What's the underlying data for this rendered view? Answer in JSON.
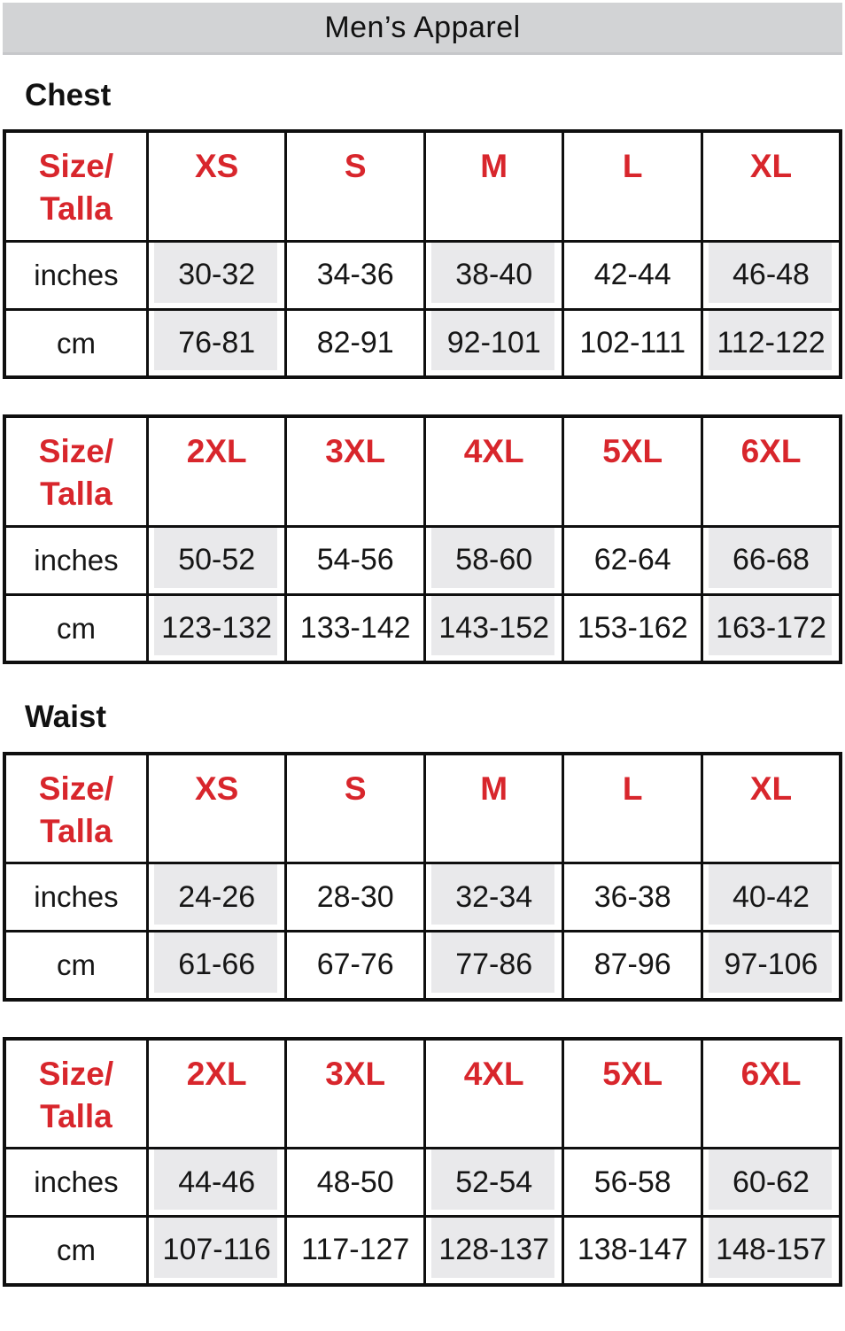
{
  "title": "Men’s Apparel",
  "corner": {
    "line1": "Size/",
    "line2": "Talla"
  },
  "sections": [
    {
      "heading": "Chest"
    },
    {
      "heading": "Waist"
    }
  ],
  "colors": {
    "accent_red": "#d8262c",
    "title_bar_bg": "#d2d3d5",
    "shaded_cell_bg": "#e9e9eb",
    "border": "#0f0f0f"
  },
  "chart_data": [
    {
      "type": "table",
      "section": "Chest",
      "columns": [
        "Size/Talla",
        "XS",
        "S",
        "M",
        "L",
        "XL"
      ],
      "row_labels": [
        "inches",
        "cm"
      ],
      "inches": [
        "30-32",
        "34-36",
        "38-40",
        "42-44",
        "46-48"
      ],
      "cm": [
        "76-81",
        "82-91",
        "92-101",
        "102-111",
        "112-122"
      ],
      "shaded_columns": [
        1,
        3,
        5
      ],
      "legend_position": "none",
      "grid": "full-borders"
    },
    {
      "type": "table",
      "section": "Chest",
      "columns": [
        "Size/Talla",
        "2XL",
        "3XL",
        "4XL",
        "5XL",
        "6XL"
      ],
      "row_labels": [
        "inches",
        "cm"
      ],
      "inches": [
        "50-52",
        "54-56",
        "58-60",
        "62-64",
        "66-68"
      ],
      "cm": [
        "123-132",
        "133-142",
        "143-152",
        "153-162",
        "163-172"
      ],
      "shaded_columns": [
        1,
        3,
        5
      ],
      "legend_position": "none",
      "grid": "full-borders"
    },
    {
      "type": "table",
      "section": "Waist",
      "columns": [
        "Size/Talla",
        "XS",
        "S",
        "M",
        "L",
        "XL"
      ],
      "row_labels": [
        "inches",
        "cm"
      ],
      "inches": [
        "24-26",
        "28-30",
        "32-34",
        "36-38",
        "40-42"
      ],
      "cm": [
        "61-66",
        "67-76",
        "77-86",
        "87-96",
        "97-106"
      ],
      "shaded_columns": [
        1,
        3,
        5
      ],
      "legend_position": "none",
      "grid": "full-borders"
    },
    {
      "type": "table",
      "section": "Waist",
      "columns": [
        "Size/Talla",
        "2XL",
        "3XL",
        "4XL",
        "5XL",
        "6XL"
      ],
      "row_labels": [
        "inches",
        "cm"
      ],
      "inches": [
        "44-46",
        "48-50",
        "52-54",
        "56-58",
        "60-62"
      ],
      "cm": [
        "107-116",
        "117-127",
        "128-137",
        "138-147",
        "148-157"
      ],
      "shaded_columns": [
        1,
        3,
        5
      ],
      "legend_position": "none",
      "grid": "full-borders"
    }
  ]
}
